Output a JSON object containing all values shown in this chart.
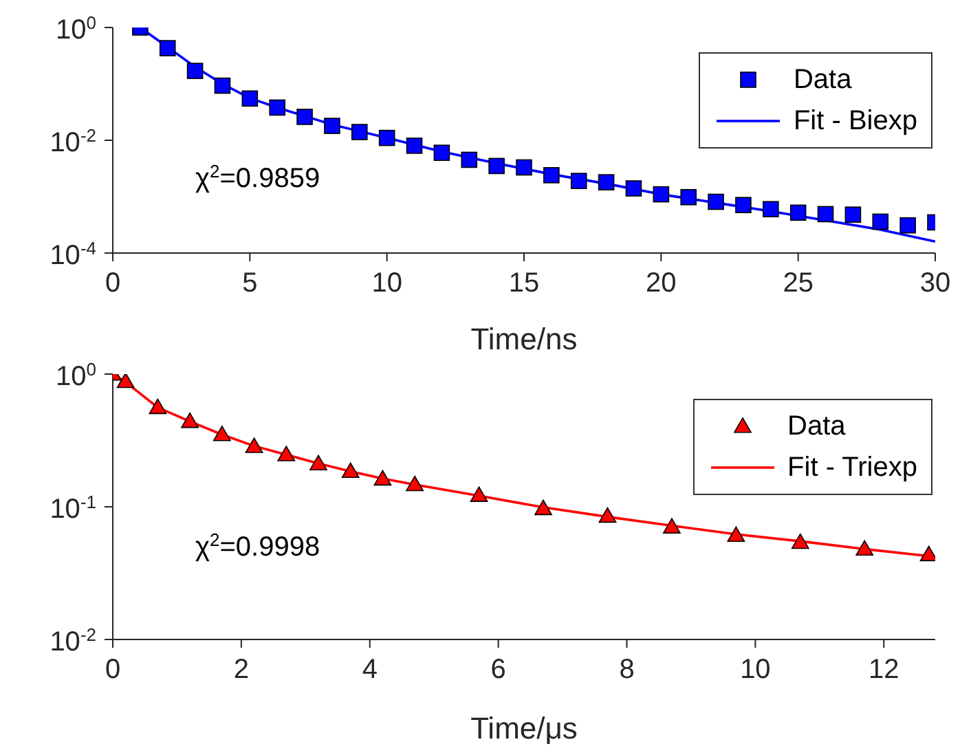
{
  "chart_data": [
    {
      "type": "line",
      "xlabel": "Time/ns",
      "xlim": [
        0,
        30
      ],
      "xticks": [
        0,
        5,
        10,
        15,
        20,
        25,
        30
      ],
      "ylim": [
        0.0001,
        1
      ],
      "yticks": [
        {
          "value": 1,
          "label": "10$^{0}$"
        },
        {
          "value": 0.01,
          "label": "10$^{-2}$"
        },
        {
          "value": 0.0001,
          "label": "10$^{-4}$"
        }
      ],
      "log": "y",
      "grid": false,
      "legend": "top right",
      "annotations": [
        "χ$^{2}$=0.9859"
      ],
      "series": [
        {
          "name": "Data",
          "type": "scatter",
          "marker": "square",
          "color": "#0000ff",
          "x": [
            1,
            2,
            3,
            4,
            5,
            6,
            7,
            8,
            9,
            10,
            11,
            12,
            13,
            14,
            15,
            16,
            17,
            18,
            19,
            20,
            21,
            22,
            23,
            24,
            25,
            26,
            27,
            28,
            29,
            30
          ],
          "values": [
            1.0,
            0.43,
            0.17,
            0.093,
            0.055,
            0.038,
            0.026,
            0.018,
            0.014,
            0.011,
            0.008,
            0.006,
            0.0045,
            0.0035,
            0.0033,
            0.0024,
            0.0019,
            0.0018,
            0.0014,
            0.0011,
            0.00098,
            0.00081,
            0.00071,
            0.0006,
            0.00052,
            0.00049,
            0.00048,
            0.00036,
            0.00031,
            0.00035
          ]
        },
        {
          "name": "Fit - Biexp",
          "type": "line",
          "marker": "none",
          "line_style": "solid",
          "color": "#0000ff",
          "x": [
            1,
            2,
            3,
            4,
            5,
            6,
            8,
            10,
            12,
            14,
            16,
            18,
            20,
            22,
            24,
            26,
            28,
            30
          ],
          "values": [
            1.0,
            0.45,
            0.2,
            0.1,
            0.056,
            0.038,
            0.019,
            0.011,
            0.0063,
            0.0039,
            0.0025,
            0.0017,
            0.0011,
            0.00078,
            0.00055,
            0.00038,
            0.00026,
            0.00016
          ]
        }
      ]
    },
    {
      "type": "line",
      "xlabel": "Time/μs",
      "xlim": [
        0,
        12.8
      ],
      "xticks": [
        0,
        2,
        4,
        6,
        8,
        10,
        12
      ],
      "ylim": [
        0.01,
        1
      ],
      "yticks": [
        {
          "value": 1,
          "label": "10$^{0}$"
        },
        {
          "value": 0.1,
          "label": "10$^{-1}$"
        },
        {
          "value": 0.01,
          "label": "10$^{-2}$"
        }
      ],
      "log": "y",
      "grid": false,
      "legend": "top right",
      "annotations": [
        "χ$^{2}$=0.9998"
      ],
      "series": [
        {
          "name": "Data",
          "type": "scatter",
          "marker": "triangle",
          "color": "#ff0000",
          "x": [
            0,
            0.2,
            0.7,
            1.2,
            1.7,
            2.2,
            2.7,
            3.2,
            3.7,
            4.2,
            4.7,
            5.7,
            6.7,
            7.7,
            8.7,
            9.7,
            10.7,
            11.7,
            12.7
          ],
          "values": [
            1.0,
            0.88,
            0.56,
            0.44,
            0.35,
            0.285,
            0.247,
            0.211,
            0.185,
            0.162,
            0.147,
            0.122,
            0.097,
            0.085,
            0.0705,
            0.061,
            0.054,
            0.048,
            0.0436
          ]
        },
        {
          "name": "Fit - Triexp",
          "type": "line",
          "marker": "none",
          "line_style": "solid",
          "color": "#ff0000",
          "x": [
            0,
            0.2,
            0.7,
            1.2,
            1.7,
            2.2,
            2.7,
            3.2,
            3.7,
            4.2,
            4.7,
            5.7,
            6.7,
            7.7,
            8.7,
            9.7,
            10.7,
            11.7,
            12.8
          ],
          "values": [
            1.0,
            0.87,
            0.56,
            0.44,
            0.35,
            0.287,
            0.247,
            0.212,
            0.185,
            0.163,
            0.147,
            0.121,
            0.099,
            0.084,
            0.072,
            0.062,
            0.055,
            0.048,
            0.042
          ]
        }
      ]
    }
  ]
}
